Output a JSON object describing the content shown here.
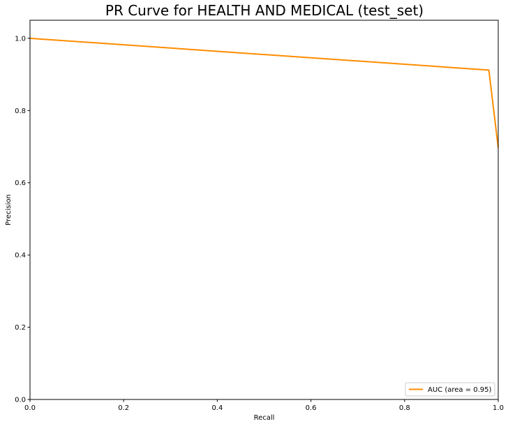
{
  "chart_data": {
    "type": "line",
    "title": "PR Curve for HEALTH AND MEDICAL (test_set)",
    "xlabel": "Recall",
    "ylabel": "Precision",
    "xlim": [
      0.0,
      1.0
    ],
    "ylim": [
      0.0,
      1.05
    ],
    "xticks": [
      "0.0",
      "0.2",
      "0.4",
      "0.6",
      "0.8",
      "1.0"
    ],
    "yticks": [
      "0.0",
      "0.2",
      "0.4",
      "0.6",
      "0.8",
      "1.0"
    ],
    "grid": false,
    "legend_position": "lower-right",
    "series": [
      {
        "name": "AUC (area = 0.95)",
        "color": "#ff8c00",
        "x": [
          0.0,
          0.98,
          1.0
        ],
        "y": [
          1.0,
          0.912,
          0.697
        ]
      }
    ]
  }
}
